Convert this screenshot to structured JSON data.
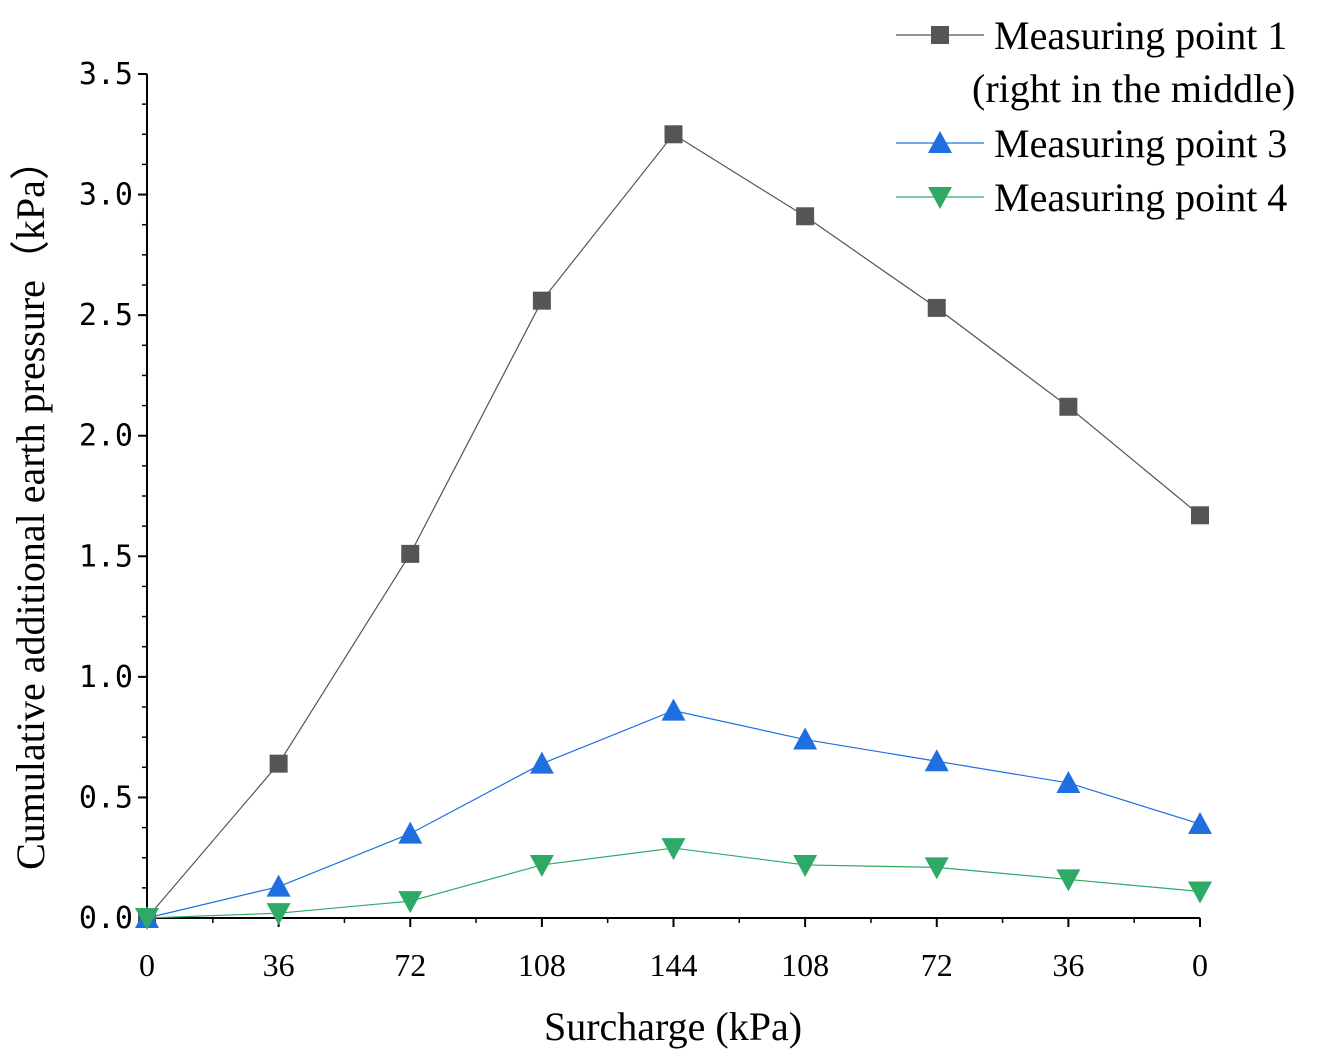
{
  "chart_data": {
    "type": "line",
    "title": "",
    "xlabel": "Surcharge (kPa)",
    "ylabel": "Cumulative additional earth pressure（kPa）",
    "categories": [
      "0",
      "36",
      "72",
      "108",
      "144",
      "108",
      "72",
      "36",
      "0"
    ],
    "ylim": [
      0,
      3.5
    ],
    "yticks": [
      "0.0",
      "0.5",
      "1.0",
      "1.5",
      "2.0",
      "2.5",
      "3.0",
      "3.5"
    ],
    "grid": false,
    "legend_position": "top-right",
    "series": [
      {
        "name": "Measuring point 1",
        "name_line2": "(right in the middle)",
        "marker": "square",
        "color": "#555555",
        "values": [
          0.0,
          0.64,
          1.51,
          2.56,
          3.25,
          2.91,
          2.53,
          2.12,
          1.67
        ]
      },
      {
        "name": "Measuring point 3",
        "marker": "triangle-up",
        "color": "#1f6fe0",
        "values": [
          0.0,
          0.13,
          0.35,
          0.64,
          0.86,
          0.74,
          0.65,
          0.56,
          0.39
        ]
      },
      {
        "name": "Measuring point 4",
        "marker": "triangle-down",
        "color": "#2eaa66",
        "values": [
          0.0,
          0.02,
          0.07,
          0.22,
          0.29,
          0.22,
          0.21,
          0.16,
          0.11
        ]
      }
    ]
  }
}
